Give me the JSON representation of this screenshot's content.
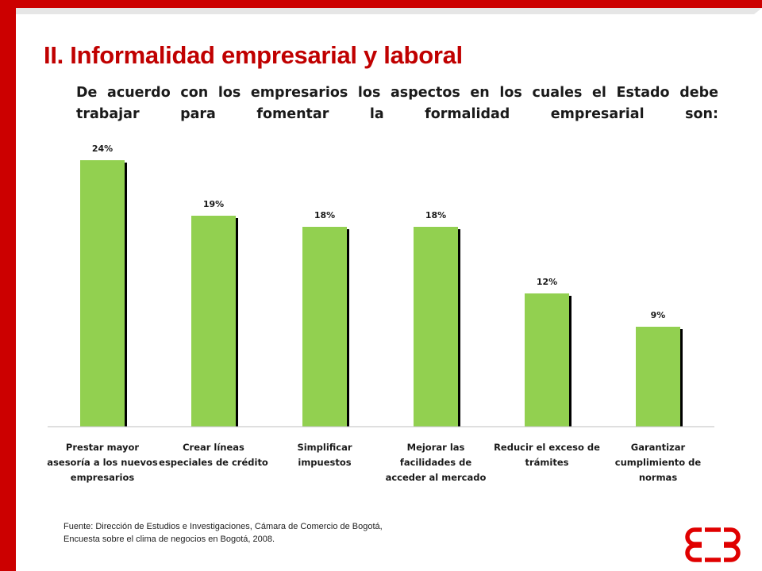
{
  "slide": {
    "title": "II. Informalidad empresarial y laboral",
    "subtitle": "De acuerdo con los empresarios los aspectos en los cuales el Estado debe trabajar para fomentar la formalidad empresarial son:",
    "source": "Fuente: Dirección de Estudios e Investigaciones, Cámara de Comercio de Bogotá, Encuesta sobre el clima de negocios en Bogotá, 2008.",
    "source_lines": [
      "Fuente: Dirección de Estudios e Investigaciones, Cámara de Comercio de Bogotá,",
      "Encuesta sobre el clima de negocios en Bogotá, 2008."
    ]
  },
  "colors": {
    "accent": "#cc0000",
    "title": "#c00000",
    "bar": "#92d050",
    "bar_shadow": "#000000"
  },
  "chart_data": {
    "type": "bar",
    "categories": [
      "Prestar mayor asesoría a los nuevos empresarios",
      "Crear líneas especiales de crédito",
      "Simplificar impuestos",
      "Mejorar las facilidades de acceder al mercado",
      "Reducir el exceso de trámites",
      "Garantizar cumplimiento de normas"
    ],
    "category_lines": [
      [
        "Prestar mayor",
        "asesoría a los nuevos",
        "empresarios"
      ],
      [
        "Crear líneas",
        "especiales de crédito"
      ],
      [
        "Simplificar",
        "impuestos"
      ],
      [
        "Mejorar las",
        "facilidades de",
        "acceder al mercado"
      ],
      [
        "Reducir el exceso de",
        "trámites"
      ],
      [
        "Garantizar",
        "cumplimiento de",
        "normas"
      ]
    ],
    "values": [
      24,
      19,
      18,
      18,
      12,
      9
    ],
    "data_labels": [
      "24%",
      "19%",
      "18%",
      "18%",
      "12%",
      "9%"
    ],
    "unit": "%",
    "ylim": [
      0,
      24
    ],
    "grid": false,
    "legend": "none"
  }
}
